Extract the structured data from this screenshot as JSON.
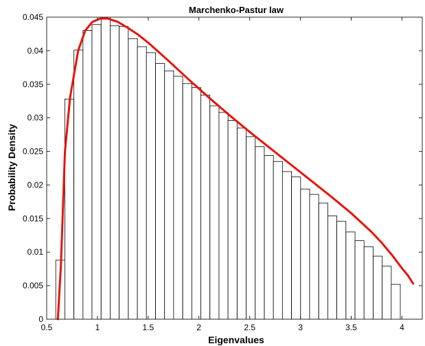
{
  "chart_data": {
    "type": "bar",
    "title": "Marchenko-Pastur law",
    "xlabel": "Eigenvalues",
    "ylabel": "Probability Density",
    "xlim": [
      0.5,
      4.2
    ],
    "ylim": [
      0,
      0.045
    ],
    "xticks": [
      "0.5",
      "1",
      "1.5",
      "2",
      "2.5",
      "3",
      "3.5",
      "4"
    ],
    "yticks": [
      "0",
      "0.005",
      "0.01",
      "0.015",
      "0.02",
      "0.025",
      "0.03",
      "0.035",
      "0.04",
      "0.045"
    ],
    "grid": false,
    "bin_width": 0.0893,
    "bars": {
      "centers": [
        0.634,
        0.723,
        0.813,
        0.902,
        0.991,
        1.081,
        1.17,
        1.259,
        1.349,
        1.438,
        1.527,
        1.617,
        1.706,
        1.795,
        1.885,
        1.974,
        2.063,
        2.153,
        2.242,
        2.331,
        2.421,
        2.51,
        2.599,
        2.689,
        2.778,
        2.867,
        2.957,
        3.046,
        3.135,
        3.225,
        3.314,
        3.403,
        3.493,
        3.582,
        3.671,
        3.761,
        3.85,
        3.939,
        4.029,
        4.118
      ],
      "values": [
        0.0088,
        0.0328,
        0.0401,
        0.043,
        0.0439,
        0.045,
        0.0437,
        0.0436,
        0.0418,
        0.0406,
        0.0397,
        0.0381,
        0.037,
        0.0362,
        0.0351,
        0.0345,
        0.0334,
        0.0318,
        0.0308,
        0.0296,
        0.0285,
        0.0272,
        0.0257,
        0.0244,
        0.0235,
        0.022,
        0.0212,
        0.0194,
        0.0186,
        0.0173,
        0.0154,
        0.0146,
        0.013,
        0.0117,
        0.0108,
        0.0094,
        0.0079,
        0.0052,
        0.0,
        0.0
      ]
    },
    "series": [
      {
        "type": "line",
        "color": "#e8120c",
        "x": [
          0.61,
          0.64,
          0.68,
          0.73,
          0.81,
          0.88,
          0.95,
          1.03,
          1.1,
          1.2,
          1.3,
          1.4,
          1.5,
          1.7,
          1.9,
          2.1,
          2.3,
          2.5,
          2.7,
          2.9,
          3.1,
          3.3,
          3.5,
          3.7,
          3.8,
          3.9,
          4.0,
          4.06,
          4.11
        ],
        "y": [
          0.0,
          0.008,
          0.025,
          0.033,
          0.04,
          0.043,
          0.0443,
          0.0448,
          0.0448,
          0.0443,
          0.0434,
          0.0424,
          0.0412,
          0.0385,
          0.0357,
          0.033,
          0.0304,
          0.0279,
          0.0255,
          0.0231,
          0.0207,
          0.0183,
          0.0158,
          0.013,
          0.0114,
          0.0096,
          0.0076,
          0.0065,
          0.0053
        ]
      }
    ]
  }
}
